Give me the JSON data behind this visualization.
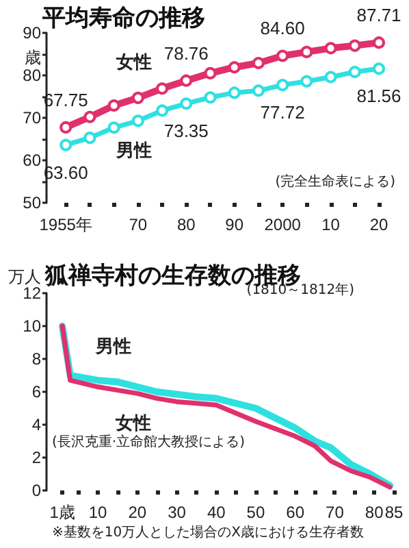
{
  "chart_data": [
    {
      "type": "line",
      "title": "平均寿命の推移",
      "ylabel": "歳",
      "annotations": [
        "(完全生命表による)"
      ],
      "x": [
        1955,
        1960,
        1965,
        1970,
        1975,
        1980,
        1985,
        1990,
        1995,
        2000,
        2005,
        2010,
        2015,
        2020
      ],
      "series": [
        {
          "name": "女性",
          "color": "#e0306e",
          "values": [
            67.75,
            70.2,
            72.9,
            74.7,
            76.9,
            78.76,
            80.5,
            81.9,
            82.9,
            84.6,
            85.5,
            86.4,
            87.0,
            87.71
          ],
          "value_labels": [
            "67.75",
            null,
            null,
            null,
            null,
            "78.76",
            null,
            null,
            null,
            "84.60",
            null,
            null,
            null,
            "87.71"
          ]
        },
        {
          "name": "男性",
          "color": "#30e0e0",
          "values": [
            63.6,
            65.3,
            67.7,
            69.3,
            71.7,
            73.35,
            74.8,
            75.9,
            76.4,
            77.72,
            78.6,
            79.6,
            80.8,
            81.56
          ],
          "value_labels": [
            "63.60",
            null,
            null,
            null,
            null,
            "73.35",
            null,
            null,
            null,
            "77.72",
            null,
            null,
            null,
            "81.56"
          ]
        }
      ],
      "xlim": [
        1951,
        2020
      ],
      "xticks": [
        {
          "value": 1955,
          "label": "1955年"
        },
        {
          "value": 1960,
          "label": null
        },
        {
          "value": 1965,
          "label": null
        },
        {
          "value": 1970,
          "label": "70"
        },
        {
          "value": 1975,
          "label": null
        },
        {
          "value": 1980,
          "label": "80"
        },
        {
          "value": 1985,
          "label": null
        },
        {
          "value": 1990,
          "label": "90"
        },
        {
          "value": 1995,
          "label": null
        },
        {
          "value": 2000,
          "label": "2000"
        },
        {
          "value": 2005,
          "label": null
        },
        {
          "value": 2010,
          "label": "10"
        },
        {
          "value": 2015,
          "label": null
        },
        {
          "value": 2020,
          "label": "20"
        }
      ],
      "ylim": [
        50,
        90
      ],
      "yticks": [
        50,
        {
          "value": 55,
          "label": null
        },
        60,
        {
          "value": 65,
          "label": null
        },
        70,
        {
          "value": 75,
          "label": null
        },
        80,
        {
          "value": 85,
          "label": null
        },
        90
      ],
      "marker": "circle",
      "grid": false,
      "legend": false
    },
    {
      "type": "line",
      "title": "狐禅寺村の生存数の推移",
      "subtitle": "(1810～1812年)",
      "ylabel": "万人",
      "annotations": [
        "(長沢克重·立命館大教授による)",
        "※基数を10万人とした場合のX歳における生存者数"
      ],
      "series": [
        {
          "name": "男性",
          "color": "#30e0e0",
          "x": [
            1,
            3,
            10,
            15,
            20,
            25,
            35,
            40,
            50,
            60,
            65,
            69,
            74,
            79,
            84
          ],
          "values": [
            10,
            7.0,
            6.7,
            6.6,
            6.3,
            6.0,
            5.7,
            5.6,
            5.0,
            3.8,
            3.0,
            2.6,
            1.6,
            1.0,
            0.3
          ]
        },
        {
          "name": "女性",
          "color": "#e0306e",
          "x": [
            1,
            3,
            10,
            15,
            20,
            25,
            30,
            35,
            40,
            50,
            60,
            65,
            69,
            74,
            79,
            84
          ],
          "values": [
            10,
            6.7,
            6.3,
            6.1,
            5.9,
            5.6,
            5.4,
            5.3,
            5.2,
            4.2,
            3.3,
            2.7,
            1.8,
            1.2,
            0.8,
            0.2
          ]
        }
      ],
      "xlim": [
        -3,
        85
      ],
      "xticks": [
        {
          "value": 1,
          "label": "1歳"
        },
        {
          "value": 5,
          "label": null
        },
        {
          "value": 10,
          "label": "10"
        },
        {
          "value": 15,
          "label": null
        },
        {
          "value": 20,
          "label": "20"
        },
        {
          "value": 25,
          "label": null
        },
        {
          "value": 30,
          "label": "30"
        },
        {
          "value": 35,
          "label": null
        },
        {
          "value": 40,
          "label": "40"
        },
        {
          "value": 45,
          "label": null
        },
        {
          "value": 50,
          "label": "50"
        },
        {
          "value": 55,
          "label": null
        },
        {
          "value": 60,
          "label": "60"
        },
        {
          "value": 65,
          "label": null
        },
        {
          "value": 70,
          "label": "70"
        },
        {
          "value": 75,
          "label": null
        },
        {
          "value": 80,
          "label": "80"
        },
        {
          "value": 85,
          "label": "85"
        }
      ],
      "ylim": [
        0,
        12
      ],
      "yticks": [
        0,
        2,
        4,
        6,
        8,
        10,
        12
      ],
      "marker": "none",
      "grid": false,
      "legend": false
    }
  ]
}
